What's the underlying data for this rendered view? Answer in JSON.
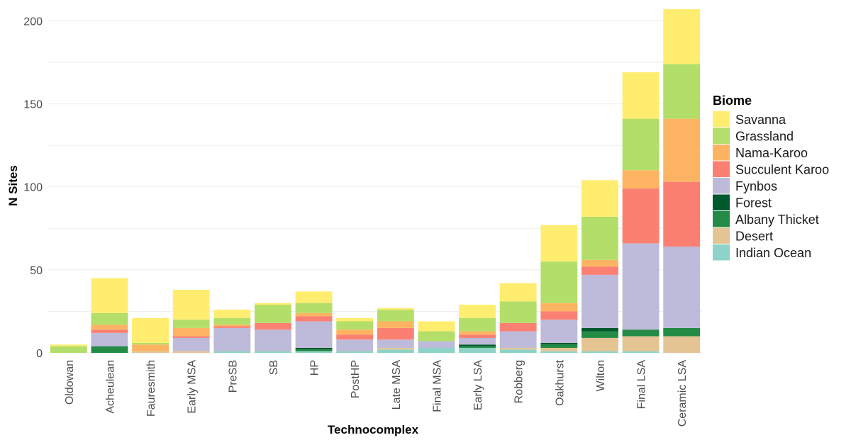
{
  "chart_data": {
    "type": "bar",
    "stacked": true,
    "xlabel": "Technocomplex",
    "ylabel": "N Sites",
    "ylim": [
      0,
      210
    ],
    "yticks": [
      0,
      50,
      100,
      150,
      200
    ],
    "grid": true,
    "legend_title": "Biome",
    "legend_position": "right",
    "categories": [
      "Oldowan",
      "Acheulean",
      "Fauresmith",
      "Early MSA",
      "PreSB",
      "SB",
      "HP",
      "PostHP",
      "Late MSA",
      "Final MSA",
      "Early LSA",
      "Robberg",
      "Oakhurst",
      "Wilton",
      "Final LSA",
      "Ceramic LSA"
    ],
    "series": [
      {
        "name": "Indian Ocean",
        "color": "#8dd3c7",
        "values": [
          0,
          0,
          0,
          0,
          1,
          1,
          1,
          1,
          2,
          3,
          3,
          2,
          1,
          1,
          1,
          0
        ]
      },
      {
        "name": "Desert",
        "color": "#e5c494",
        "values": [
          0,
          0,
          1,
          1,
          0,
          0,
          0,
          0,
          1,
          0,
          0,
          1,
          2,
          8,
          9,
          10
        ]
      },
      {
        "name": "Albany Thicket",
        "color": "#238b45",
        "values": [
          0,
          4,
          0,
          0,
          0,
          0,
          1,
          0,
          0,
          0,
          1,
          0,
          2,
          4,
          4,
          5
        ]
      },
      {
        "name": "Forest",
        "color": "#00592e",
        "values": [
          0,
          0,
          0,
          0,
          0,
          0,
          1,
          0,
          0,
          0,
          1,
          0,
          1,
          2,
          0,
          0
        ]
      },
      {
        "name": "Fynbos",
        "color": "#bebada",
        "values": [
          0,
          8,
          0,
          8,
          14,
          13,
          16,
          7,
          5,
          4,
          4,
          10,
          14,
          32,
          52,
          49
        ]
      },
      {
        "name": "Succulent Karoo",
        "color": "#fb8072",
        "values": [
          0,
          2,
          0,
          1,
          1,
          4,
          3,
          3,
          7,
          0,
          2,
          5,
          5,
          5,
          33,
          39
        ]
      },
      {
        "name": "Nama-Karoo",
        "color": "#fdb462",
        "values": [
          0,
          3,
          4,
          5,
          1,
          0,
          2,
          3,
          4,
          0,
          2,
          0,
          5,
          4,
          11,
          38
        ]
      },
      {
        "name": "Grassland",
        "color": "#b3de69",
        "values": [
          4,
          7,
          1,
          5,
          4,
          11,
          6,
          5,
          7,
          6,
          8,
          13,
          25,
          26,
          31,
          33
        ]
      },
      {
        "name": "Savanna",
        "color": "#ffed6f",
        "values": [
          1,
          21,
          15,
          18,
          5,
          1,
          7,
          2,
          1,
          6,
          8,
          11,
          22,
          22,
          28,
          33
        ]
      }
    ],
    "legend_order": [
      "Savanna",
      "Grassland",
      "Nama-Karoo",
      "Succulent Karoo",
      "Fynbos",
      "Forest",
      "Albany Thicket",
      "Desert",
      "Indian Ocean"
    ]
  }
}
